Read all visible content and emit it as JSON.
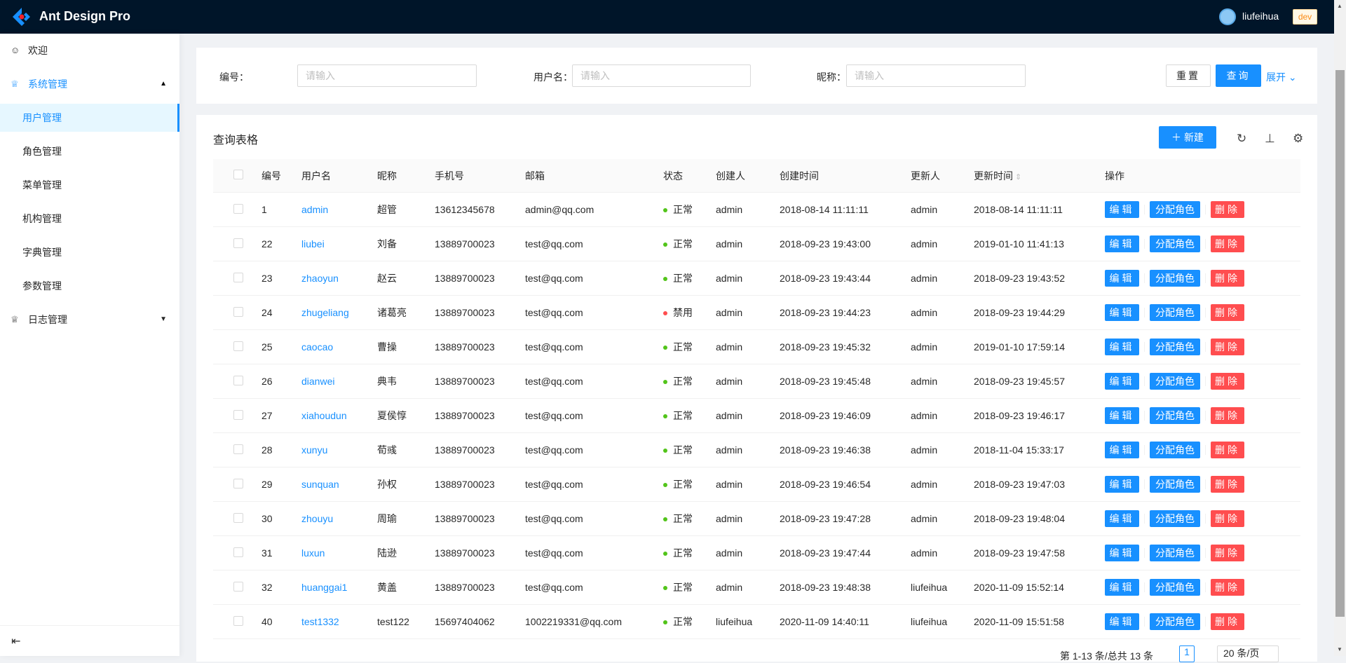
{
  "header": {
    "title": "Ant Design Pro",
    "user": "liufeihua",
    "env": "dev"
  },
  "sidebar": {
    "items": [
      {
        "label": "欢迎",
        "icon": "smile-icon"
      },
      {
        "label": "系统管理",
        "icon": "crown-icon",
        "expanded": true,
        "children": [
          {
            "label": "用户管理",
            "selected": true
          },
          {
            "label": "角色管理"
          },
          {
            "label": "菜单管理"
          },
          {
            "label": "机构管理"
          },
          {
            "label": "字典管理"
          },
          {
            "label": "参数管理"
          }
        ]
      },
      {
        "label": "日志管理",
        "icon": "crown-icon",
        "expanded": false
      }
    ]
  },
  "search": {
    "fields": [
      {
        "label": "编号",
        "placeholder": "请输入"
      },
      {
        "label": "用户名",
        "placeholder": "请输入"
      },
      {
        "label": "昵称",
        "placeholder": "请输入"
      }
    ],
    "reset": "重置",
    "query": "查询",
    "expand": "展开"
  },
  "table": {
    "title": "查询表格",
    "new_label": "新建",
    "columns": [
      "编号",
      "用户名",
      "昵称",
      "手机号",
      "邮箱",
      "状态",
      "创建人",
      "创建时间",
      "更新人",
      "更新时间",
      "操作"
    ],
    "actions": {
      "edit": "编辑",
      "assign": "分配角色",
      "delete": "删除"
    },
    "status_colors": {
      "正常": "#52c41a",
      "禁用": "#ff4d4f"
    },
    "rows": [
      [
        "1",
        "admin",
        "超管",
        "13612345678",
        "admin@qq.com",
        "正常",
        "admin",
        "2018-08-14 11:11:11",
        "admin",
        "2018-08-14 11:11:11"
      ],
      [
        "22",
        "liubei",
        "刘备",
        "13889700023",
        "test@qq.com",
        "正常",
        "admin",
        "2018-09-23 19:43:00",
        "admin",
        "2019-01-10 11:41:13"
      ],
      [
        "23",
        "zhaoyun",
        "赵云",
        "13889700023",
        "test@qq.com",
        "正常",
        "admin",
        "2018-09-23 19:43:44",
        "admin",
        "2018-09-23 19:43:52"
      ],
      [
        "24",
        "zhugeliang",
        "诸葛亮",
        "13889700023",
        "test@qq.com",
        "禁用",
        "admin",
        "2018-09-23 19:44:23",
        "admin",
        "2018-09-23 19:44:29"
      ],
      [
        "25",
        "caocao",
        "曹操",
        "13889700023",
        "test@qq.com",
        "正常",
        "admin",
        "2018-09-23 19:45:32",
        "admin",
        "2019-01-10 17:59:14"
      ],
      [
        "26",
        "dianwei",
        "典韦",
        "13889700023",
        "test@qq.com",
        "正常",
        "admin",
        "2018-09-23 19:45:48",
        "admin",
        "2018-09-23 19:45:57"
      ],
      [
        "27",
        "xiahoudun",
        "夏侯惇",
        "13889700023",
        "test@qq.com",
        "正常",
        "admin",
        "2018-09-23 19:46:09",
        "admin",
        "2018-09-23 19:46:17"
      ],
      [
        "28",
        "xunyu",
        "荀彧",
        "13889700023",
        "test@qq.com",
        "正常",
        "admin",
        "2018-09-23 19:46:38",
        "admin",
        "2018-11-04 15:33:17"
      ],
      [
        "29",
        "sunquan",
        "孙权",
        "13889700023",
        "test@qq.com",
        "正常",
        "admin",
        "2018-09-23 19:46:54",
        "admin",
        "2018-09-23 19:47:03"
      ],
      [
        "30",
        "zhouyu",
        "周瑜",
        "13889700023",
        "test@qq.com",
        "正常",
        "admin",
        "2018-09-23 19:47:28",
        "admin",
        "2018-09-23 19:48:04"
      ],
      [
        "31",
        "luxun",
        "陆逊",
        "13889700023",
        "test@qq.com",
        "正常",
        "admin",
        "2018-09-23 19:47:44",
        "admin",
        "2018-09-23 19:47:58"
      ],
      [
        "32",
        "huanggai1",
        "黄盖",
        "13889700023",
        "test@qq.com",
        "正常",
        "admin",
        "2018-09-23 19:48:38",
        "liufeihua",
        "2020-11-09 15:52:14"
      ],
      [
        "40",
        "test1332",
        "test122",
        "15697404062",
        "1002219331@qq.com",
        "正常",
        "liufeihua",
        "2020-11-09 14:40:11",
        "liufeihua",
        "2020-11-09 15:51:58"
      ]
    ]
  },
  "pagination": {
    "summary": "第 1-13 条/总共 13 条",
    "current": "1",
    "page_size": "20 条/页"
  }
}
